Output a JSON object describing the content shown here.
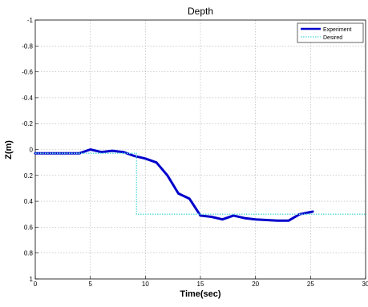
{
  "chart_data": {
    "type": "line",
    "title": "Depth",
    "xlabel": "Time(sec)",
    "ylabel": "Z(m)",
    "xlim": [
      0,
      30
    ],
    "ylim": [
      -1,
      1
    ],
    "y_axis_reversed": true,
    "grid": true,
    "legend_position": "top-right",
    "xticks": [
      0,
      5,
      10,
      15,
      20,
      25,
      30
    ],
    "xtick_labels": [
      "0",
      "5",
      "10",
      "15",
      "20",
      "25",
      "30"
    ],
    "yticks": [
      -1,
      -0.8,
      -0.6,
      -0.4,
      -0.2,
      0,
      0.2,
      0.4,
      0.6,
      0.8,
      1
    ],
    "ytick_labels": [
      "-1",
      "-0.8",
      "-0.6",
      "-0.4",
      "-0.2",
      "0",
      "0.2",
      "0.4",
      "0.6",
      "0.8",
      "1"
    ],
    "series": [
      {
        "name": "Experiment",
        "color": "#0000cc",
        "style": "solid",
        "x": [
          0,
          1,
          2,
          3,
          4,
          5,
          6,
          7,
          8,
          9,
          10,
          11,
          12,
          13,
          14,
          15,
          16,
          17,
          18,
          19,
          20,
          21,
          22,
          23,
          24,
          25.2
        ],
        "y": [
          0.03,
          0.03,
          0.03,
          0.03,
          0.03,
          0.0,
          0.02,
          0.01,
          0.02,
          0.05,
          0.07,
          0.1,
          0.2,
          0.34,
          0.38,
          0.51,
          0.52,
          0.54,
          0.51,
          0.53,
          0.54,
          0.545,
          0.55,
          0.55,
          0.5,
          0.48
        ]
      },
      {
        "name": "Desired",
        "color": "#66dddd",
        "style": "dotted",
        "x": [
          0,
          9.2,
          9.2,
          30
        ],
        "y": [
          0.03,
          0.03,
          0.5,
          0.5
        ]
      }
    ]
  }
}
